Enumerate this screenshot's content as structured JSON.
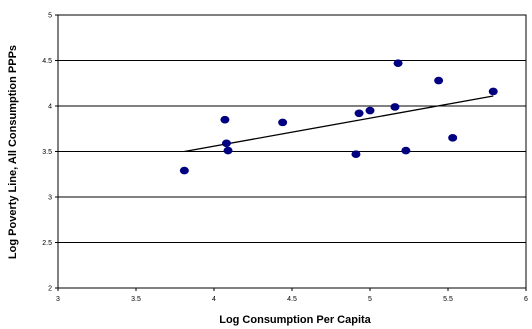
{
  "chart_data": {
    "type": "scatter",
    "xlabel": "Log Consumption Per Capita",
    "ylabel": "Log Poverty Line, All Consumption PPPs",
    "xlim": [
      3,
      6
    ],
    "ylim": [
      2,
      5
    ],
    "x_ticks": [
      3,
      3.5,
      4,
      4.5,
      5,
      5.5,
      6
    ],
    "y_ticks": [
      2,
      2.5,
      3,
      3.5,
      4,
      4.5,
      5
    ],
    "x_tick_labels": [
      "3",
      "3.5",
      "4",
      "4.5",
      "5",
      "5.5",
      "6"
    ],
    "y_tick_labels": [
      "2",
      "2.5",
      "3",
      "3.5",
      "4",
      "4.5",
      "5"
    ],
    "grid": "horizontal",
    "point_color": "#000080",
    "points": [
      {
        "x": 3.81,
        "y": 3.29
      },
      {
        "x": 4.07,
        "y": 3.85
      },
      {
        "x": 4.08,
        "y": 3.59
      },
      {
        "x": 4.09,
        "y": 3.51
      },
      {
        "x": 4.44,
        "y": 3.82
      },
      {
        "x": 4.91,
        "y": 3.47
      },
      {
        "x": 4.93,
        "y": 3.92
      },
      {
        "x": 5.0,
        "y": 3.95
      },
      {
        "x": 5.16,
        "y": 3.99
      },
      {
        "x": 5.18,
        "y": 4.47
      },
      {
        "x": 5.23,
        "y": 3.51
      },
      {
        "x": 5.44,
        "y": 4.28
      },
      {
        "x": 5.53,
        "y": 3.65
      },
      {
        "x": 5.79,
        "y": 4.16
      }
    ],
    "trendline": {
      "x": [
        3.81,
        5.79
      ],
      "y": [
        3.5,
        4.11
      ]
    }
  }
}
